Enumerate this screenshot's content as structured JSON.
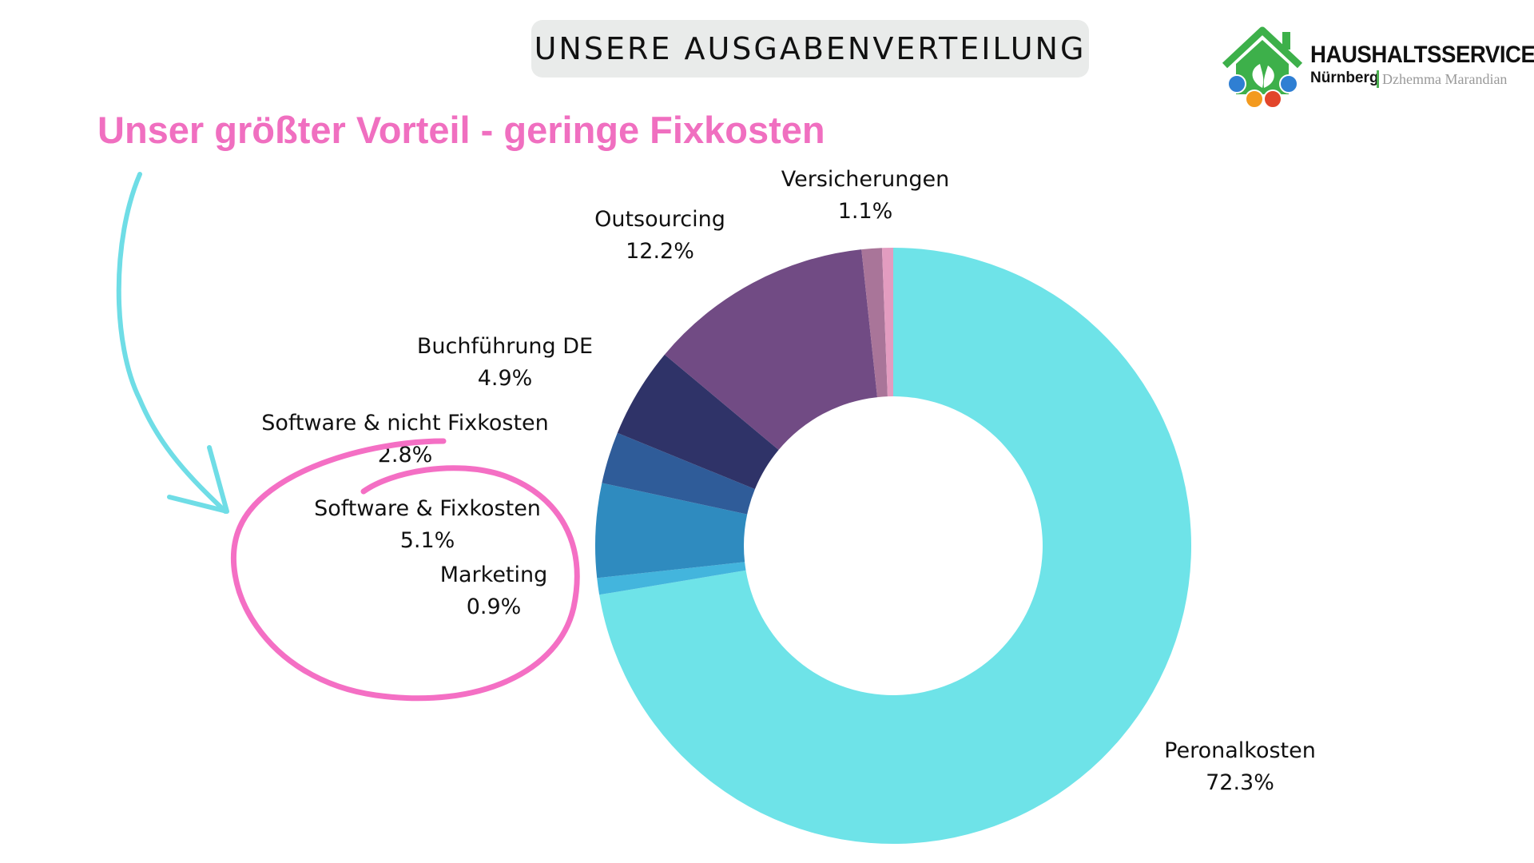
{
  "header": {
    "title": "UNSERE AUSGABENVERTEILUNG",
    "subtitle": "Unser größter Vorteil - geringe Fixkosten"
  },
  "logo": {
    "name": "HAUSHALTSSERVICE",
    "city": "Nürnberg",
    "owner": "Dzhemma Marandian",
    "colors": {
      "roof": "#3db04a",
      "badge_blue": "#2f7fd3",
      "badge_orange": "#f39a1e",
      "badge_red": "#e2452b"
    }
  },
  "annotation": {
    "arrow_color": "#6fdde6",
    "circle_color": "#f46fc4"
  },
  "chart_data": {
    "type": "pie",
    "donut": true,
    "labels_format": "name and percent",
    "slices": [
      {
        "name": "Peronalkosten",
        "value": 72.3,
        "label": "72.3%",
        "color": "#6ee3e8"
      },
      {
        "name": "Marketing",
        "value": 0.9,
        "label": "0.9%",
        "color": "#43b5dd"
      },
      {
        "name": "Software & Fixkosten",
        "value": 5.1,
        "label": "5.1%",
        "color": "#2f8bbf"
      },
      {
        "name": "Software & nicht Fixkosten",
        "value": 2.8,
        "label": "2.8%",
        "color": "#2f5c99"
      },
      {
        "name": "Buchführung DE",
        "value": 4.9,
        "label": "4.9%",
        "color": "#2f3368"
      },
      {
        "name": "Outsourcing",
        "value": 12.2,
        "label": "12.2%",
        "color": "#714b84"
      },
      {
        "name": "Versicherungen",
        "value": 1.1,
        "label": "1.1%",
        "color": "#a97599"
      },
      {
        "name": "",
        "value": 0.6,
        "label": "",
        "color": "#e39cc0"
      }
    ]
  }
}
